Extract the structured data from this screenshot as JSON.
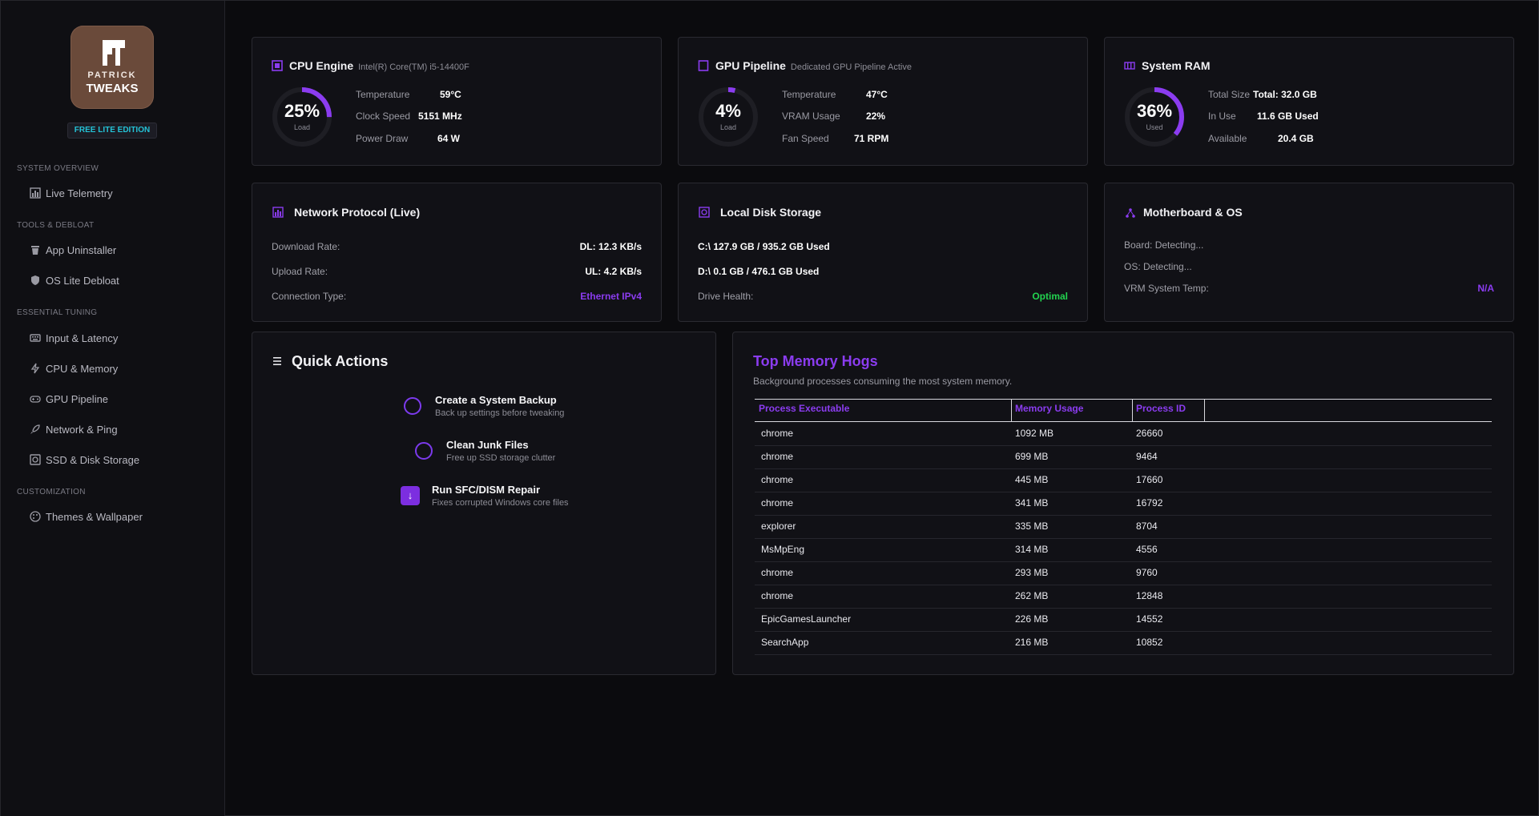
{
  "brand": {
    "logo_line1": "PATRICK",
    "logo_line2": "TWEAKS",
    "edition": "FREE LITE EDITION"
  },
  "colors": {
    "accent": "#8b3cf0",
    "edition_text": "#24c2d6",
    "ok_green": "#22d34f",
    "background": "#0b0b0e",
    "card": "#111116"
  },
  "sidebar": {
    "sections": [
      {
        "label": "SYSTEM OVERVIEW",
        "items": [
          {
            "label": "Live Telemetry",
            "icon": "chart-icon"
          }
        ]
      },
      {
        "label": "TOOLS & DEBLOAT",
        "items": [
          {
            "label": "App Uninstaller",
            "icon": "trash-icon"
          },
          {
            "label": "OS Lite Debloat",
            "icon": "shield-icon"
          }
        ]
      },
      {
        "label": "ESSENTIAL TUNING",
        "items": [
          {
            "label": "Input & Latency",
            "icon": "keyboard-icon"
          },
          {
            "label": "CPU & Memory",
            "icon": "bolt-icon"
          },
          {
            "label": "GPU Pipeline",
            "icon": "gamepad-icon"
          },
          {
            "label": "Network & Ping",
            "icon": "rocket-icon"
          },
          {
            "label": "SSD & Disk Storage",
            "icon": "disk-icon"
          }
        ]
      },
      {
        "label": "CUSTOMIZATION",
        "items": [
          {
            "label": "Themes & Wallpaper",
            "icon": "palette-icon"
          }
        ]
      }
    ]
  },
  "cpu": {
    "title": "CPU Engine",
    "subtitle": "Intel(R) Core(TM) i5-14400F",
    "gauge_value": "25%",
    "gauge_label": "Load",
    "gauge_fraction": 0.25,
    "stats": [
      {
        "label": "Temperature",
        "value": "59°C"
      },
      {
        "label": "Clock Speed",
        "value": "5151 MHz"
      },
      {
        "label": "Power Draw",
        "value": "64 W"
      }
    ]
  },
  "gpu": {
    "title": "GPU Pipeline",
    "subtitle": "Dedicated GPU Pipeline Active",
    "gauge_value": "4%",
    "gauge_label": "Load",
    "gauge_fraction": 0.04,
    "stats": [
      {
        "label": "Temperature",
        "value": "47°C"
      },
      {
        "label": "VRAM Usage",
        "value": "22%"
      },
      {
        "label": "Fan Speed",
        "value": "71 RPM"
      }
    ]
  },
  "ram": {
    "title": "System RAM",
    "gauge_value": "36%",
    "gauge_label": "Used",
    "gauge_fraction": 0.36,
    "stats": [
      {
        "label": "Total Size",
        "value": "Total: 32.0 GB"
      },
      {
        "label": "In Use",
        "value": "11.6 GB Used"
      },
      {
        "label": "Available",
        "value": "20.4 GB"
      }
    ]
  },
  "network": {
    "title": "Network Protocol (Live)",
    "rows": [
      {
        "label": "Download Rate:",
        "value": "DL: 12.3 KB/s"
      },
      {
        "label": "Upload Rate:",
        "value": "UL: 4.2 KB/s"
      },
      {
        "label": "Connection Type:",
        "value": "Ethernet IPv4"
      }
    ]
  },
  "disk": {
    "title": "Local Disk Storage",
    "drives": [
      "C:\\ 127.9 GB / 935.2 GB Used",
      "D:\\ 0.1 GB / 476.1 GB Used"
    ],
    "health_label": "Drive Health:",
    "health_value": "Optimal"
  },
  "motherboard": {
    "title": "Motherboard & OS",
    "board": "Board: Detecting...",
    "os": "OS: Detecting...",
    "vrm_label": "VRM System Temp:",
    "vrm_value": "N/A"
  },
  "quick_actions": {
    "title": "Quick Actions",
    "items": [
      {
        "title": "Create a System Backup",
        "desc": "Back up settings before tweaking"
      },
      {
        "title": "Clean Junk Files",
        "desc": "Free up SSD storage clutter"
      },
      {
        "title": "Run SFC/DISM Repair",
        "desc": "Fixes corrupted Windows core files",
        "icon_glyph": "↓"
      }
    ]
  },
  "memory_hogs": {
    "title": "Top Memory Hogs",
    "subtitle": "Background processes consuming the most system memory.",
    "columns": [
      "Process Executable",
      "Memory Usage",
      "Process ID"
    ],
    "rows": [
      [
        "chrome",
        "1092 MB",
        "26660"
      ],
      [
        "chrome",
        "699 MB",
        "9464"
      ],
      [
        "chrome",
        "445 MB",
        "17660"
      ],
      [
        "chrome",
        "341 MB",
        "16792"
      ],
      [
        "explorer",
        "335 MB",
        "8704"
      ],
      [
        "MsMpEng",
        "314 MB",
        "4556"
      ],
      [
        "chrome",
        "293 MB",
        "9760"
      ],
      [
        "chrome",
        "262 MB",
        "12848"
      ],
      [
        "EpicGamesLauncher",
        "226 MB",
        "14552"
      ],
      [
        "SearchApp",
        "216 MB",
        "10852"
      ]
    ]
  }
}
